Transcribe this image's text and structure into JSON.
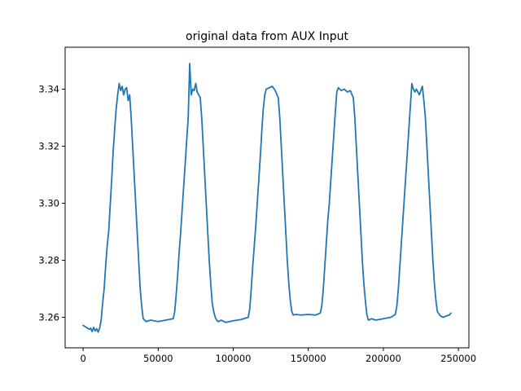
{
  "chart_data": {
    "type": "line",
    "title": "original data from AUX Input",
    "xlabel": "",
    "ylabel": "",
    "xlim": [
      -12000,
      257000
    ],
    "ylim": [
      3.2493,
      3.3547
    ],
    "x_ticks": [
      0,
      50000,
      100000,
      150000,
      200000,
      250000
    ],
    "x_tick_labels": [
      "0",
      "50000",
      "100000",
      "150000",
      "200000",
      "250000"
    ],
    "y_ticks": [
      3.26,
      3.28,
      3.3,
      3.32,
      3.34
    ],
    "y_tick_labels": [
      "3.26",
      "3.28",
      "3.30",
      "3.32",
      "3.34"
    ],
    "grid": false,
    "legend": "none",
    "series": [
      {
        "color": "#1f77b4",
        "x": [
          0,
          2000,
          4000,
          5000,
          6000,
          7000,
          8000,
          9000,
          10000,
          11000,
          12000,
          13000,
          14000,
          15000,
          16000,
          17000,
          18000,
          19000,
          20000,
          21000,
          22000,
          23000,
          24000,
          25000,
          26000,
          27000,
          28000,
          29000,
          30000,
          31000,
          32000,
          33000,
          34000,
          35000,
          36000,
          37000,
          38000,
          39000,
          40000,
          42000,
          45000,
          50000,
          55000,
          60000,
          61000,
          62000,
          63000,
          64000,
          65000,
          66000,
          67000,
          68000,
          69000,
          70000,
          71000,
          72000,
          73000,
          74000,
          75000,
          76000,
          77000,
          78000,
          79000,
          80000,
          81000,
          82000,
          83000,
          84000,
          85000,
          86000,
          87000,
          88000,
          89000,
          90000,
          92000,
          95000,
          100000,
          105000,
          110000,
          111000,
          112000,
          113000,
          114000,
          115000,
          116000,
          117000,
          118000,
          119000,
          120000,
          121000,
          122000,
          124000,
          126000,
          128000,
          130000,
          131000,
          132000,
          133000,
          134000,
          135000,
          136000,
          137000,
          138000,
          139000,
          140000,
          142000,
          145000,
          150000,
          155000,
          158000,
          159000,
          160000,
          161000,
          162000,
          163000,
          164000,
          165000,
          166000,
          167000,
          168000,
          169000,
          170000,
          172000,
          174000,
          176000,
          178000,
          180000,
          181000,
          182000,
          183000,
          184000,
          185000,
          186000,
          187000,
          188000,
          189000,
          190000,
          192000,
          195000,
          200000,
          205000,
          208000,
          209000,
          210000,
          211000,
          212000,
          213000,
          214000,
          215000,
          216000,
          217000,
          218000,
          219000,
          220000,
          221000,
          222000,
          224000,
          226000,
          227000,
          228000,
          229000,
          230000,
          231000,
          232000,
          233000,
          234000,
          235000,
          236000,
          238000,
          240000,
          242000,
          244000,
          245000
        ],
        "y": [
          3.2572,
          3.2565,
          3.2558,
          3.2562,
          3.255,
          3.2565,
          3.2552,
          3.256,
          3.2548,
          3.2562,
          3.259,
          3.265,
          3.27,
          3.278,
          3.285,
          3.29,
          3.299,
          3.308,
          3.318,
          3.326,
          3.333,
          3.338,
          3.342,
          3.3395,
          3.341,
          3.338,
          3.34,
          3.3405,
          3.336,
          3.338,
          3.33,
          3.32,
          3.31,
          3.3,
          3.29,
          3.28,
          3.27,
          3.264,
          3.2595,
          3.2585,
          3.259,
          3.2585,
          3.259,
          3.2595,
          3.262,
          3.268,
          3.275,
          3.283,
          3.29,
          3.298,
          3.306,
          3.314,
          3.322,
          3.33,
          3.349,
          3.338,
          3.34,
          3.3395,
          3.342,
          3.339,
          3.338,
          3.337,
          3.33,
          3.32,
          3.31,
          3.3,
          3.29,
          3.28,
          3.272,
          3.265,
          3.262,
          3.26,
          3.259,
          3.2585,
          3.259,
          3.2582,
          3.2588,
          3.2592,
          3.26,
          3.263,
          3.27,
          3.278,
          3.285,
          3.292,
          3.3,
          3.308,
          3.316,
          3.325,
          3.333,
          3.338,
          3.34,
          3.3405,
          3.341,
          3.3395,
          3.337,
          3.33,
          3.32,
          3.31,
          3.3,
          3.29,
          3.28,
          3.272,
          3.266,
          3.262,
          3.2608,
          3.261,
          3.2608,
          3.261,
          3.2608,
          3.2615,
          3.264,
          3.27,
          3.278,
          3.286,
          3.294,
          3.3,
          3.308,
          3.316,
          3.324,
          3.332,
          3.339,
          3.3405,
          3.3395,
          3.34,
          3.339,
          3.3395,
          3.337,
          3.33,
          3.32,
          3.31,
          3.3,
          3.29,
          3.28,
          3.272,
          3.266,
          3.261,
          3.259,
          3.2595,
          3.259,
          3.2595,
          3.26,
          3.261,
          3.264,
          3.27,
          3.278,
          3.286,
          3.294,
          3.302,
          3.31,
          3.318,
          3.326,
          3.334,
          3.342,
          3.34,
          3.339,
          3.34,
          3.338,
          3.341,
          3.336,
          3.33,
          3.32,
          3.31,
          3.3,
          3.29,
          3.28,
          3.272,
          3.266,
          3.262,
          3.2605,
          3.26,
          3.2605,
          3.2608,
          3.2615
        ]
      }
    ]
  }
}
